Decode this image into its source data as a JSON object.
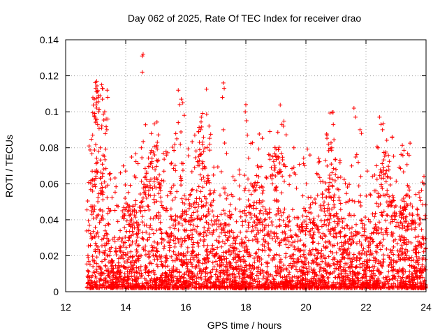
{
  "chart_data": {
    "type": "scatter",
    "title": "Day 062 of 2025, Rate Of TEC Index for receiver drao",
    "xlabel": "GPS time / hours",
    "ylabel": "ROTI / TECUs",
    "xlim": [
      12,
      24
    ],
    "ylim": [
      0,
      0.14
    ],
    "x_ticks": [
      "12",
      "14",
      "16",
      "18",
      "20",
      "22",
      "24"
    ],
    "y_ticks": [
      "0",
      "0.02",
      "0.04",
      "0.06",
      "0.08",
      "0.1",
      "0.12",
      "0.14"
    ],
    "grid": true,
    "marker": "plus",
    "color": "#ff0000",
    "x_range_of_data": [
      12.7,
      24.0
    ],
    "series": [
      {
        "points": [
          [
            12.78,
            0.081
          ],
          [
            12.9,
            0.087
          ],
          [
            12.95,
            0.107
          ],
          [
            13.0,
            0.113
          ],
          [
            13.02,
            0.105
          ],
          [
            13.05,
            0.111
          ],
          [
            13.1,
            0.1
          ],
          [
            13.2,
            0.115
          ],
          [
            13.22,
            0.113
          ],
          [
            13.3,
            0.1
          ],
          [
            13.38,
            0.112
          ],
          [
            13.4,
            0.108
          ],
          [
            13.35,
            0.096
          ],
          [
            13.37,
            0.09
          ],
          [
            13.1,
            0.078
          ],
          [
            13.15,
            0.08
          ],
          [
            13.05,
            0.072
          ],
          [
            13.0,
            0.063
          ],
          [
            13.2,
            0.06
          ],
          [
            13.25,
            0.055
          ],
          [
            14.55,
            0.131
          ],
          [
            14.58,
            0.132
          ],
          [
            14.55,
            0.122
          ],
          [
            14.52,
            0.08
          ],
          [
            15.75,
            0.112
          ],
          [
            15.8,
            0.104
          ],
          [
            15.85,
            0.107
          ],
          [
            15.9,
            0.105
          ],
          [
            15.95,
            0.098
          ],
          [
            15.75,
            0.094
          ],
          [
            15.7,
            0.085
          ],
          [
            16.3,
            0.087
          ],
          [
            16.5,
            0.09
          ],
          [
            16.8,
            0.082
          ],
          [
            17.25,
            0.116
          ],
          [
            17.28,
            0.113
          ],
          [
            17.22,
            0.108
          ],
          [
            17.25,
            0.09
          ],
          [
            18.0,
            0.104
          ],
          [
            17.98,
            0.1
          ],
          [
            18.02,
            0.095
          ],
          [
            18.05,
            0.087
          ],
          [
            18.8,
            0.089
          ],
          [
            19.2,
            0.093
          ],
          [
            19.25,
            0.092
          ],
          [
            19.6,
            0.08
          ],
          [
            20.7,
            0.087
          ],
          [
            20.75,
            0.082
          ],
          [
            20.65,
            0.073
          ],
          [
            21.0,
            0.068
          ],
          [
            21.6,
            0.102
          ],
          [
            21.65,
            0.097
          ],
          [
            21.8,
            0.09
          ],
          [
            21.85,
            0.088
          ],
          [
            22.45,
            0.097
          ],
          [
            22.5,
            0.093
          ],
          [
            22.55,
            0.09
          ],
          [
            22.4,
            0.08
          ],
          [
            22.35,
            0.07
          ],
          [
            22.6,
            0.065
          ]
        ]
      }
    ]
  }
}
